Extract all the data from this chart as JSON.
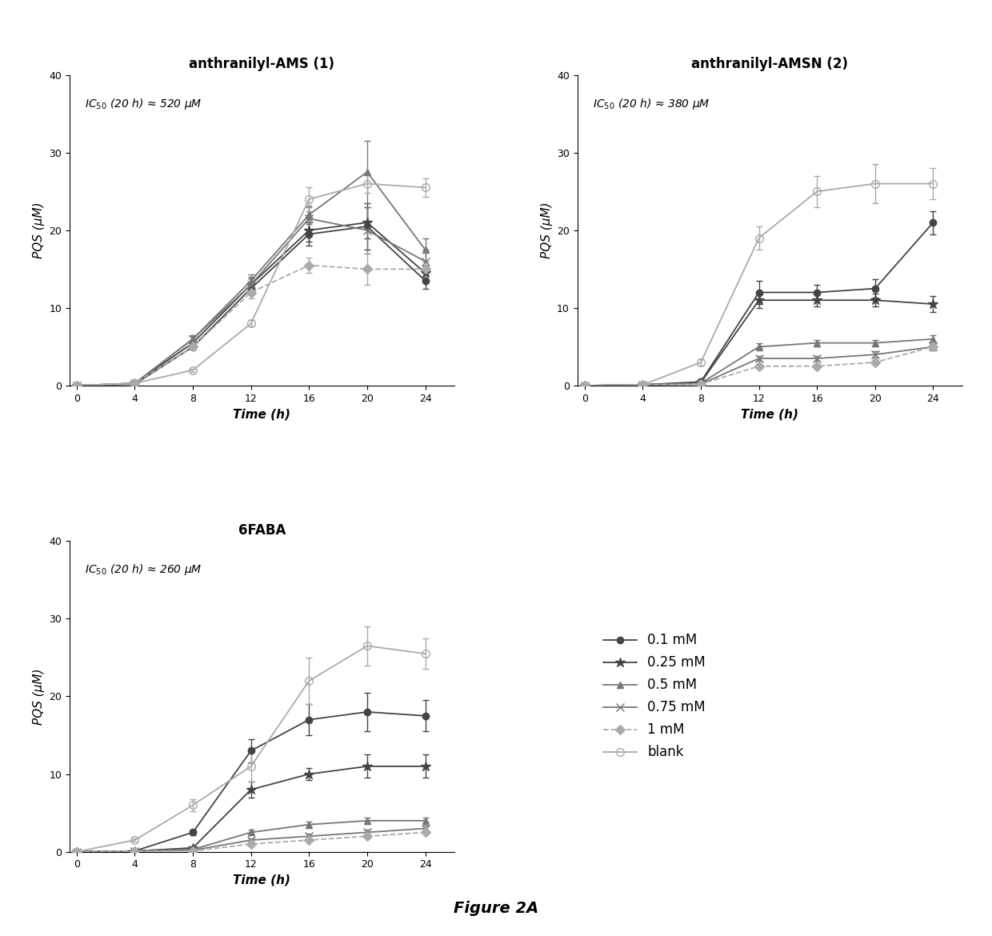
{
  "time": [
    0,
    4,
    8,
    12,
    16,
    20,
    24
  ],
  "panel1": {
    "title": "anthranilyl-AMS (1)",
    "ic50_text": "IC$_{50}$ (20 h) ≈ 520 μM",
    "series": {
      "0.1mM": [
        0,
        0.2,
        5.0,
        12.5,
        19.5,
        20.5,
        13.5
      ],
      "0.25mM": [
        0,
        0.3,
        5.5,
        13.0,
        20.0,
        21.0,
        14.5
      ],
      "0.5mM": [
        0,
        0.3,
        6.0,
        13.5,
        22.0,
        27.5,
        17.5
      ],
      "0.75mM": [
        0,
        0.3,
        6.0,
        13.0,
        21.5,
        20.0,
        16.0
      ],
      "1mM": [
        0,
        0.3,
        5.0,
        12.0,
        15.5,
        15.0,
        15.0
      ],
      "blank": [
        0,
        0.3,
        2.0,
        8.0,
        24.0,
        26.0,
        25.5
      ]
    },
    "errors": {
      "0.1mM": [
        0,
        0.0,
        0.4,
        0.8,
        1.5,
        3.0,
        1.0
      ],
      "0.25mM": [
        0,
        0.0,
        0.4,
        0.8,
        1.5,
        2.0,
        1.0
      ],
      "0.5mM": [
        0,
        0.0,
        0.4,
        0.8,
        1.2,
        4.0,
        1.5
      ],
      "0.75mM": [
        0,
        0.0,
        0.5,
        1.0,
        1.5,
        3.0,
        1.5
      ],
      "1mM": [
        0,
        0.0,
        0.4,
        0.8,
        1.0,
        2.0,
        1.0
      ],
      "blank": [
        0,
        0.0,
        0.2,
        0.4,
        1.5,
        1.2,
        1.2
      ]
    }
  },
  "panel2": {
    "title": "anthranilyl-AMSN (2)",
    "ic50_text": "IC$_{50}$ (20 h) ≈ 380 μM",
    "series": {
      "0.1mM": [
        0,
        0.1,
        0.5,
        12.0,
        12.0,
        12.5,
        21.0
      ],
      "0.25mM": [
        0,
        0.1,
        0.4,
        11.0,
        11.0,
        11.0,
        10.5
      ],
      "0.5mM": [
        0,
        0.1,
        0.3,
        5.0,
        5.5,
        5.5,
        6.0
      ],
      "0.75mM": [
        0,
        0.1,
        0.2,
        3.5,
        3.5,
        4.0,
        5.0
      ],
      "1mM": [
        0,
        0.1,
        0.2,
        2.5,
        2.5,
        3.0,
        5.0
      ],
      "blank": [
        0,
        0.1,
        3.0,
        19.0,
        25.0,
        26.0,
        26.0
      ]
    },
    "errors": {
      "0.1mM": [
        0,
        0.0,
        0.3,
        1.5,
        1.0,
        1.2,
        1.5
      ],
      "0.25mM": [
        0,
        0.0,
        0.2,
        1.0,
        0.8,
        0.8,
        1.0
      ],
      "0.5mM": [
        0,
        0.0,
        0.1,
        0.5,
        0.4,
        0.4,
        0.5
      ],
      "0.75mM": [
        0,
        0.0,
        0.1,
        0.3,
        0.3,
        0.4,
        0.5
      ],
      "1mM": [
        0,
        0.0,
        0.1,
        0.3,
        0.3,
        0.3,
        0.5
      ],
      "blank": [
        0,
        0.0,
        0.4,
        1.5,
        2.0,
        2.5,
        2.0
      ]
    }
  },
  "panel3": {
    "title": "6FABA",
    "ic50_text": "IC$_{50}$ (20 h) ≈ 260 μM",
    "series": {
      "0.1mM": [
        0,
        0.1,
        2.5,
        13.0,
        17.0,
        18.0,
        17.5
      ],
      "0.25mM": [
        0,
        0.1,
        0.5,
        8.0,
        10.0,
        11.0,
        11.0
      ],
      "0.5mM": [
        0,
        0.1,
        0.3,
        2.5,
        3.5,
        4.0,
        4.0
      ],
      "0.75mM": [
        0,
        0.1,
        0.2,
        1.5,
        2.0,
        2.5,
        3.0
      ],
      "1mM": [
        0,
        0.1,
        0.1,
        1.0,
        1.5,
        2.0,
        2.5
      ],
      "blank": [
        0,
        1.5,
        6.0,
        11.0,
        22.0,
        26.5,
        25.5
      ]
    },
    "errors": {
      "0.1mM": [
        0,
        0.0,
        0.4,
        1.5,
        2.0,
        2.5,
        2.0
      ],
      "0.25mM": [
        0,
        0.0,
        0.2,
        1.0,
        0.8,
        1.5,
        1.5
      ],
      "0.5mM": [
        0,
        0.0,
        0.1,
        0.4,
        0.4,
        0.4,
        0.4
      ],
      "0.75mM": [
        0,
        0.0,
        0.1,
        0.2,
        0.3,
        0.4,
        0.4
      ],
      "1mM": [
        0,
        0.0,
        0.1,
        0.2,
        0.2,
        0.3,
        0.3
      ],
      "blank": [
        0,
        0.2,
        0.8,
        2.0,
        3.0,
        2.5,
        2.0
      ]
    }
  },
  "series_keys": [
    "0.1mM",
    "0.25mM",
    "0.5mM",
    "0.75mM",
    "1mM",
    "blank"
  ],
  "legend_labels": [
    "0.1 mM",
    "0.25 mM",
    "0.5 mM",
    "0.75 mM",
    "1 mM",
    "blank"
  ],
  "colors": [
    "#444444",
    "#444444",
    "#777777",
    "#777777",
    "#aaaaaa",
    "#aaaaaa"
  ],
  "markers": [
    "o",
    "*",
    "^",
    "x",
    "D",
    "o"
  ],
  "markerfacecolors": [
    "#444444",
    "#444444",
    "#777777",
    "#777777",
    "#aaaaaa",
    "none"
  ],
  "markersizes": [
    6,
    9,
    6,
    7,
    6,
    7
  ],
  "linestyles": [
    "-",
    "-",
    "-",
    "-",
    "--",
    "-"
  ],
  "ylim": [
    0,
    40
  ],
  "yticks": [
    0,
    10,
    20,
    30,
    40
  ],
  "xlim": [
    -0.5,
    26
  ],
  "xticks": [
    0,
    4,
    8,
    12,
    16,
    20,
    24
  ],
  "xlabel": "Time (h)",
  "ylabel": "PQS (μM)",
  "figure_caption": "Figure 2A",
  "background": "#ffffff"
}
